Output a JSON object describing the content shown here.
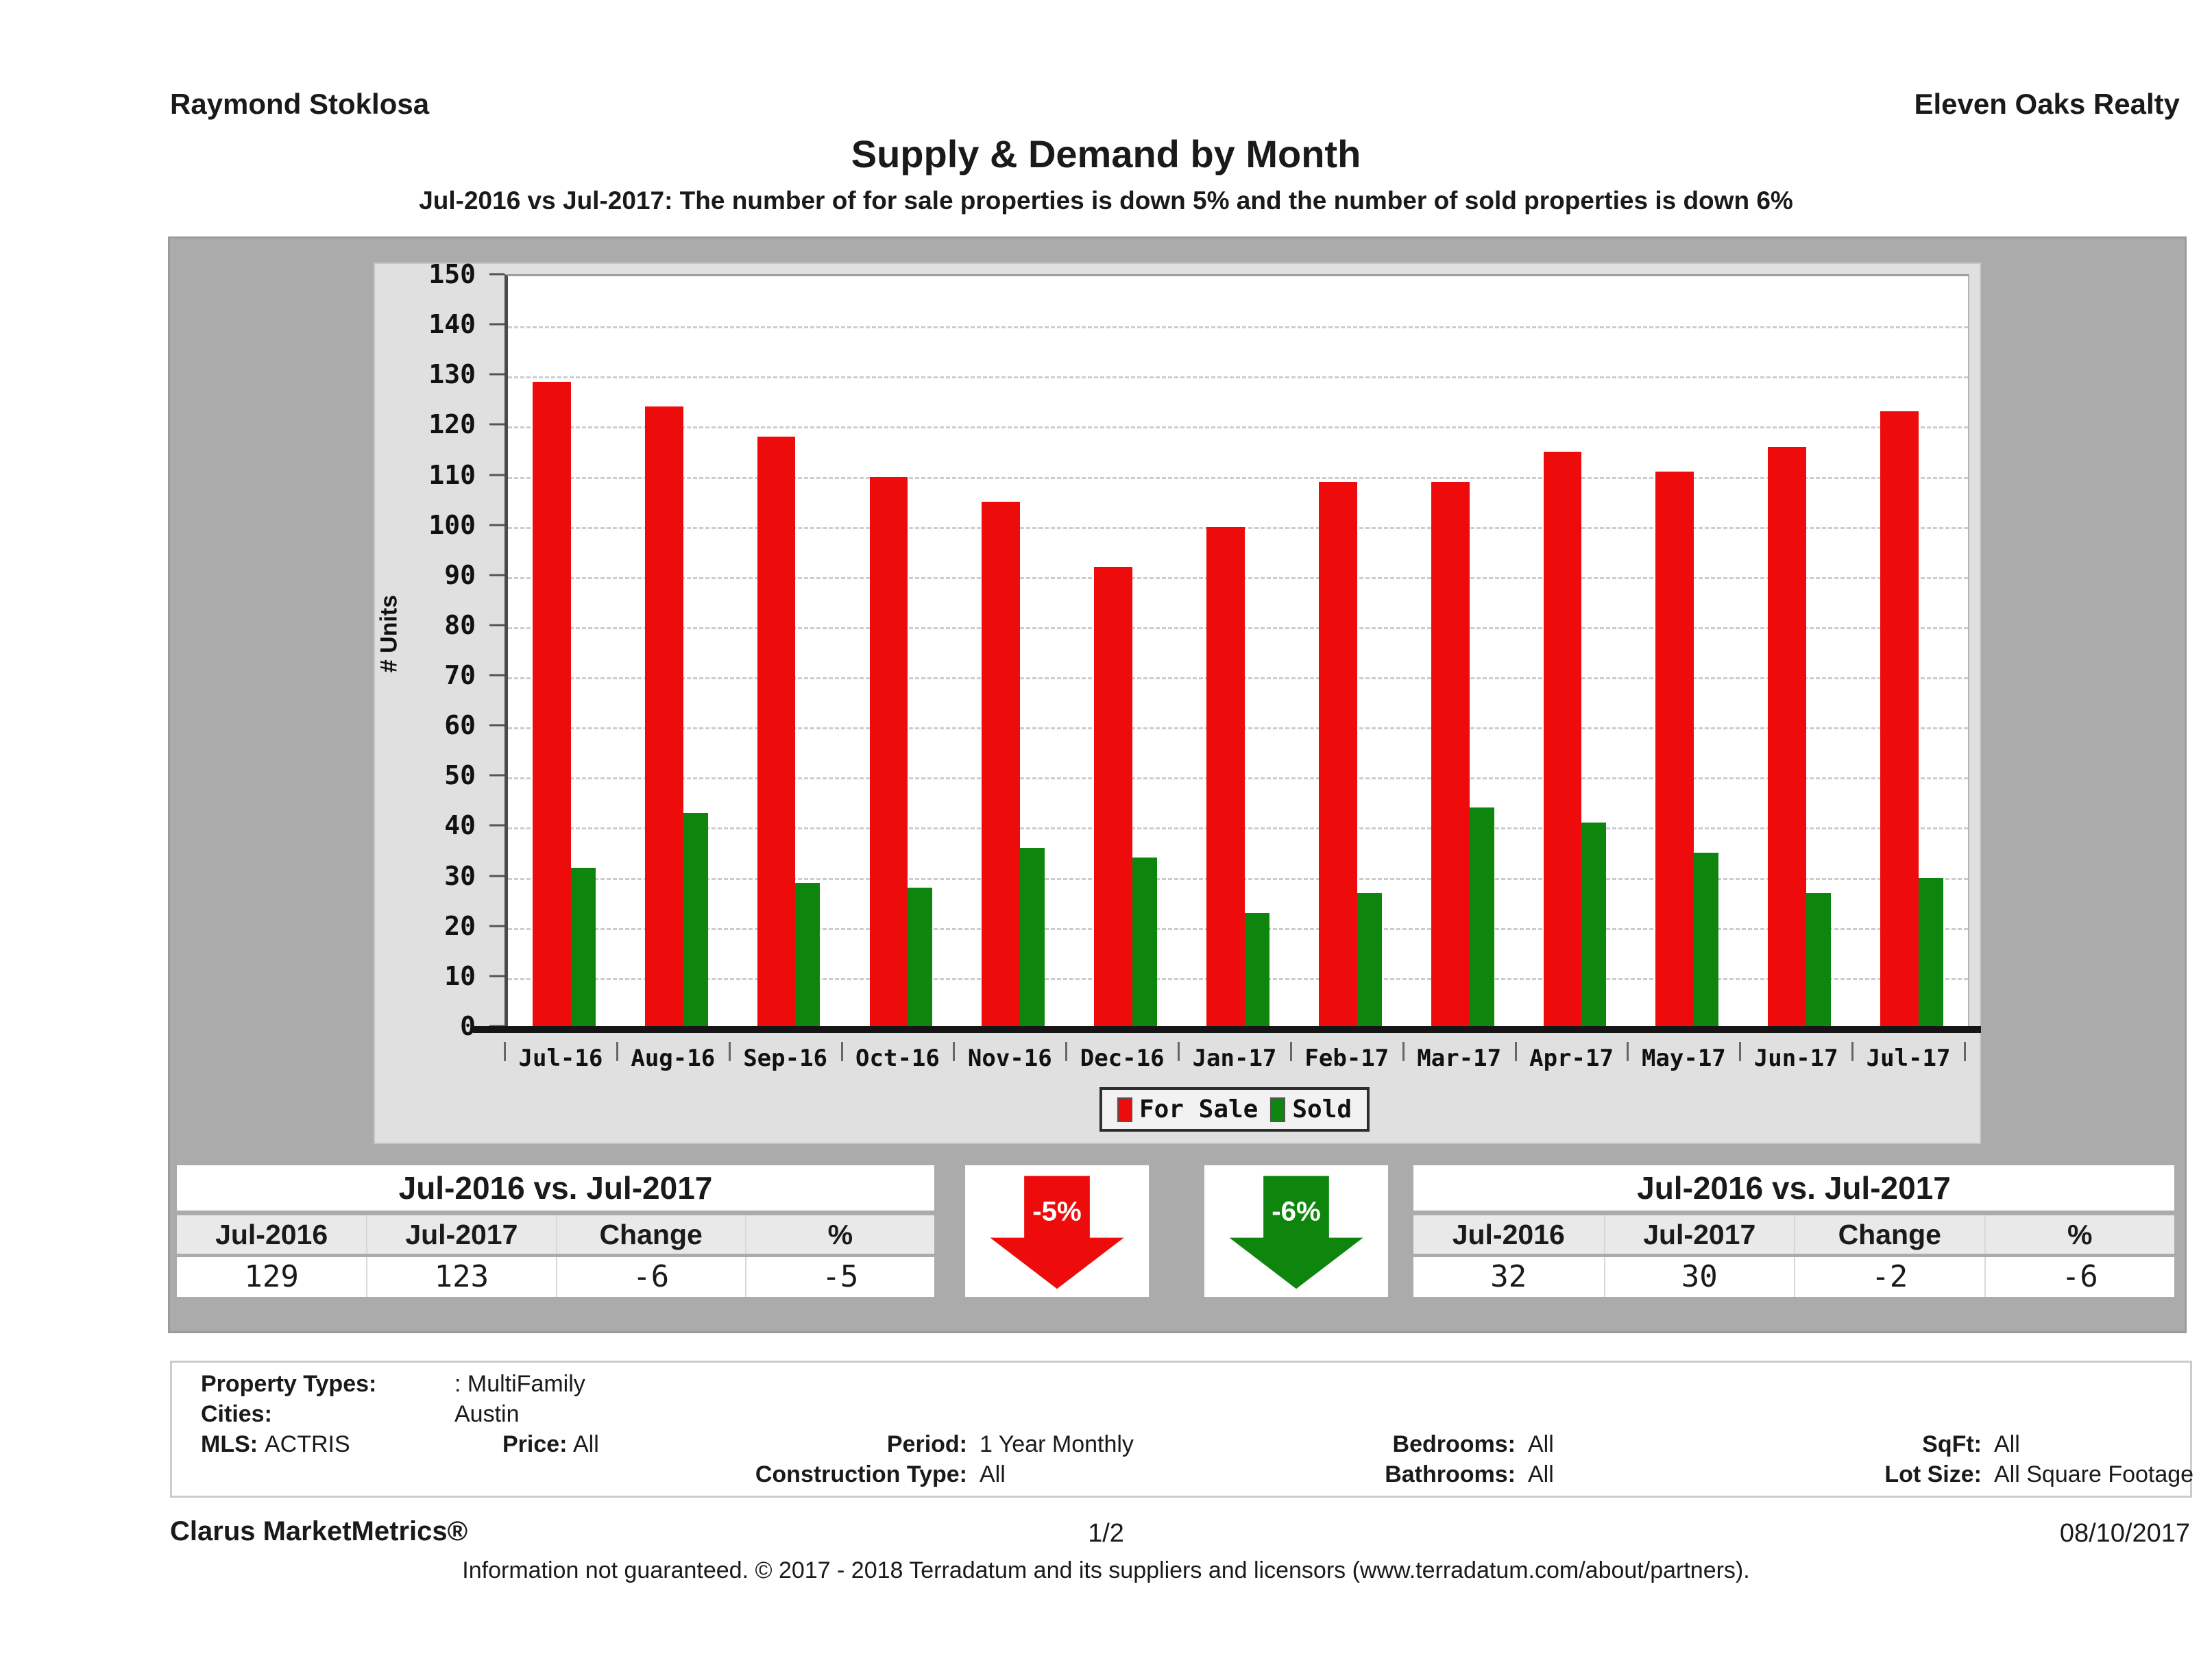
{
  "header": {
    "agent": "Raymond Stoklosa",
    "company": "Eleven Oaks Realty",
    "title": "Supply & Demand by Month",
    "subtitle": "Jul-2016 vs Jul-2017: The number of for sale properties is down 5% and the number of sold properties is down 6%"
  },
  "chart_data": {
    "type": "bar",
    "title": "Supply & Demand by Month",
    "categories": [
      "Jul-16",
      "Aug-16",
      "Sep-16",
      "Oct-16",
      "Nov-16",
      "Dec-16",
      "Jan-17",
      "Feb-17",
      "Mar-17",
      "Apr-17",
      "May-17",
      "Jun-17",
      "Jul-17"
    ],
    "series": [
      {
        "name": "For Sale",
        "color": "#ee0b0b",
        "values": [
          129,
          124,
          118,
          110,
          105,
          92,
          100,
          109,
          109,
          115,
          111,
          116,
          123
        ]
      },
      {
        "name": "Sold",
        "color": "#0e860e",
        "values": [
          32,
          43,
          29,
          28,
          36,
          34,
          23,
          27,
          44,
          41,
          35,
          27,
          30
        ]
      }
    ],
    "xlabel": "",
    "ylabel": "# Units",
    "ylim": [
      0,
      150
    ],
    "ytick_step": 10,
    "grid": "horizontal-dashed",
    "legend_position": "bottom-center"
  },
  "summary_left": {
    "title": "Jul-2016 vs. Jul-2017",
    "columns": [
      "Jul-2016",
      "Jul-2017",
      "Change",
      "%"
    ],
    "values": [
      "129",
      "123",
      "-6",
      "-5"
    ]
  },
  "summary_right": {
    "title": "Jul-2016 vs. Jul-2017",
    "columns": [
      "Jul-2016",
      "Jul-2017",
      "Change",
      "%"
    ],
    "values": [
      "32",
      "30",
      "-2",
      "-6"
    ]
  },
  "arrows": [
    {
      "label": "-5%",
      "color": "#ee0b0b"
    },
    {
      "label": "-6%",
      "color": "#0e860e"
    }
  ],
  "filters": {
    "property_types_label": "Property Types:",
    "property_types_value": ": MultiFamily",
    "cities_label": "Cities:",
    "cities_value": "Austin",
    "mls_label": "MLS:",
    "mls_value": "ACTRIS",
    "price_label": "Price:",
    "price_value": "All",
    "period_label": "Period:",
    "period_value": "1 Year Monthly",
    "construction_label": "Construction Type:",
    "construction_value": "All",
    "bedrooms_label": "Bedrooms:",
    "bedrooms_value": "All",
    "bathrooms_label": "Bathrooms:",
    "bathrooms_value": "All",
    "sqft_label": "SqFt:",
    "sqft_value": "All",
    "lot_size_label": "Lot Size:",
    "lot_size_value": "All Square Footage"
  },
  "footer": {
    "brand": "Clarus MarketMetrics®",
    "page": "1/2",
    "date": "08/10/2017",
    "disclaimer": "Information not guaranteed. © 2017 - 2018 Terradatum and its suppliers and licensors (www.terradatum.com/about/partners)."
  }
}
